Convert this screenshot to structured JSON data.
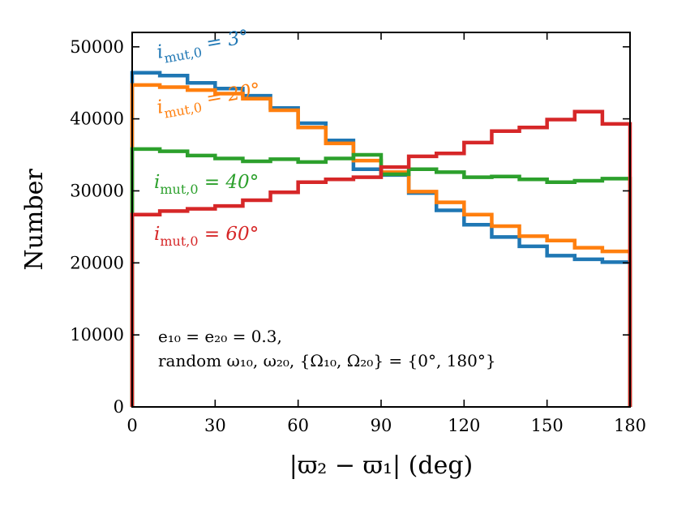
{
  "chart_data": {
    "type": "line",
    "title": "",
    "xlabel": "|ϖ₂ − ϖ₁| (deg)",
    "ylabel": "Number",
    "xlim": [
      0,
      180
    ],
    "ylim": [
      0,
      52000
    ],
    "xticks": [
      0,
      30,
      60,
      90,
      120,
      150,
      180
    ],
    "yticks": [
      0,
      10000,
      20000,
      30000,
      40000,
      50000
    ],
    "xtick_labels": [
      "0",
      "30",
      "60",
      "90",
      "120",
      "150",
      "180"
    ],
    "ytick_labels": [
      "0",
      "10000",
      "20000",
      "30000",
      "40000",
      "50000"
    ],
    "grid": false,
    "bin_edges": [
      0,
      10,
      20,
      30,
      40,
      50,
      60,
      70,
      80,
      90,
      100,
      110,
      120,
      130,
      140,
      150,
      160,
      170,
      180
    ],
    "series": [
      {
        "name": "i_mut,0 = 3°",
        "color": "#1f77b4",
        "values": [
          46400,
          46000,
          45000,
          44200,
          43200,
          41500,
          39400,
          37000,
          33000,
          32200,
          29700,
          27300,
          25300,
          23600,
          22300,
          21000,
          20500,
          20100
        ]
      },
      {
        "name": "i_mut,0 = 20°",
        "color": "#ff7f0e",
        "values": [
          44700,
          44400,
          44000,
          43500,
          42800,
          41200,
          38800,
          36600,
          34200,
          32600,
          29900,
          28400,
          26700,
          25100,
          23700,
          23100,
          22100,
          21600
        ]
      },
      {
        "name": "i_mut,0 = 40°",
        "color": "#2ca02c",
        "values": [
          35800,
          35500,
          34900,
          34500,
          34100,
          34400,
          34000,
          34500,
          35000,
          32300,
          33000,
          32600,
          31900,
          32000,
          31600,
          31200,
          31400,
          31700
        ]
      },
      {
        "name": "i_mut,0 = 60°",
        "color": "#d62728",
        "values": [
          26700,
          27200,
          27500,
          27900,
          28700,
          29800,
          31200,
          31600,
          31900,
          33300,
          34800,
          35200,
          36700,
          38300,
          38800,
          39900,
          41000,
          39300
        ]
      }
    ],
    "series_labels": [
      {
        "sub": "mut,0",
        "value": "3°"
      },
      {
        "sub": "mut,0",
        "value": "20°"
      },
      {
        "sub": "mut,0",
        "value": "40°"
      },
      {
        "sub": "mut,0",
        "value": "60°"
      }
    ],
    "annotations": [
      "e₁₀ = e₂₀ = 0.3,",
      "random ω₁₀, ω₂₀, {Ω₁₀, Ω₂₀} = {0°, 180°}"
    ]
  }
}
